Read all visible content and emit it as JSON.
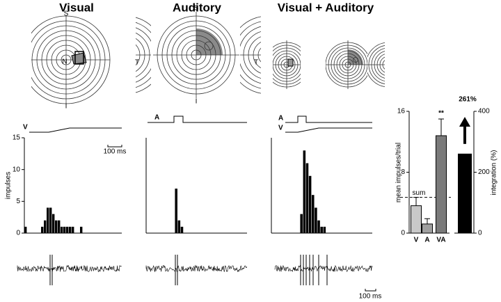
{
  "chart_data": [
    {
      "type": "histogram",
      "title": "Visual",
      "stimulus_labels": [
        "V"
      ],
      "rf_labels": [
        "S",
        "N",
        "I"
      ],
      "y_label": "impulses",
      "bins": [
        0,
        20,
        40,
        60,
        80,
        100,
        120,
        140,
        160,
        180,
        200,
        220,
        240,
        260,
        280,
        300,
        320,
        340,
        360,
        380,
        400,
        420,
        440
      ],
      "counts": [
        1,
        0,
        0,
        0,
        0,
        0,
        1,
        2,
        4,
        4,
        3,
        2,
        2,
        1,
        1,
        1,
        1,
        1,
        0,
        0,
        1,
        0
      ],
      "color": "#000000",
      "xlim": [
        0,
        700
      ],
      "ylim": [
        0,
        15
      ],
      "yticks": [
        0,
        5,
        10,
        15
      ],
      "scale_bar": "100 ms"
    },
    {
      "type": "histogram",
      "title": "Auditory",
      "stimulus_labels": [
        "A"
      ],
      "rf_labels": [
        "S",
        "T",
        "T",
        "I"
      ],
      "bins": [
        200,
        220,
        240,
        260
      ],
      "counts": [
        7,
        2,
        1
      ],
      "color": "#000000",
      "xlim": [
        0,
        700
      ],
      "ylim": [
        0,
        15
      ]
    },
    {
      "type": "histogram",
      "title": "Visual + Auditory",
      "stimulus_labels": [
        "A",
        "V"
      ],
      "bins": [
        200,
        220,
        240,
        260,
        280,
        300,
        320,
        340,
        360,
        380
      ],
      "counts": [
        3,
        13,
        11,
        9,
        6,
        4,
        2,
        1,
        1
      ],
      "color": "#000000",
      "xlim": [
        0,
        700
      ],
      "ylim": [
        0,
        15
      ]
    },
    {
      "type": "bar",
      "y_label": "mean impulses/trial",
      "categories": [
        "V",
        "A",
        "VA"
      ],
      "values": [
        3.6,
        1.2,
        12.8
      ],
      "errors": [
        1.1,
        0.7,
        2.2
      ],
      "colors": [
        "#c8c8c8",
        "#a0a0a0",
        "#7a7a7a"
      ],
      "ylim": [
        0,
        16
      ],
      "yticks": [
        0,
        8,
        16
      ],
      "reference": {
        "label": "sum",
        "value": 4.7
      },
      "annotation": "**"
    },
    {
      "type": "bar",
      "y_label": "integration (%)",
      "values": [
        261
      ],
      "value_labels": [
        "261%"
      ],
      "color": "#000000",
      "ylim": [
        0,
        400
      ],
      "yticks": [
        0,
        200,
        400
      ]
    }
  ],
  "spike_scale_bar": "100 ms"
}
